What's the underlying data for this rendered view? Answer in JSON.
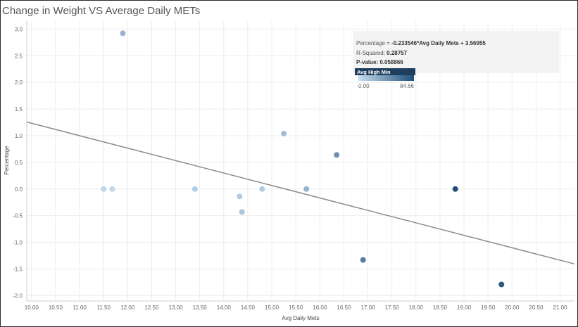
{
  "chart_data": {
    "type": "scatter",
    "title": "Change in Weight VS Average Daily METs",
    "xlabel": "Avg Daily Mets",
    "ylabel": "Percentage",
    "xlim": [
      9.9,
      21.3
    ],
    "ylim": [
      -2.1,
      3.15
    ],
    "x_ticks": [
      "10.00",
      "10.50",
      "11.00",
      "11.50",
      "12.00",
      "12.50",
      "13.00",
      "13.50",
      "14.00",
      "14.50",
      "15.00",
      "15.50",
      "16.00",
      "16.50",
      "17.00",
      "17.50",
      "18.00",
      "18.50",
      "19.00",
      "19.50",
      "20.00",
      "20.50",
      "21.00"
    ],
    "y_ticks": [
      "3.0",
      "2.5",
      "2.0",
      "1.5",
      "1.0",
      "0.5",
      "0.0",
      "-0.5",
      "-1.0",
      "-1.5",
      "-2.0"
    ],
    "grid": true,
    "points": [
      {
        "x": 11.5,
        "y": 0.0,
        "avg_high_min": 5
      },
      {
        "x": 11.68,
        "y": 0.0,
        "avg_high_min": 4
      },
      {
        "x": 11.9,
        "y": 2.92,
        "avg_high_min": 25
      },
      {
        "x": 13.4,
        "y": 0.0,
        "avg_high_min": 10
      },
      {
        "x": 14.33,
        "y": -0.14,
        "avg_high_min": 12
      },
      {
        "x": 14.38,
        "y": -0.43,
        "avg_high_min": 14
      },
      {
        "x": 14.8,
        "y": 0.0,
        "avg_high_min": 10
      },
      {
        "x": 15.25,
        "y": 1.04,
        "avg_high_min": 20
      },
      {
        "x": 15.72,
        "y": 0.0,
        "avg_high_min": 25
      },
      {
        "x": 16.35,
        "y": 0.64,
        "avg_high_min": 45
      },
      {
        "x": 16.9,
        "y": -1.33,
        "avg_high_min": 58
      },
      {
        "x": 18.82,
        "y": 0.0,
        "avg_high_min": 84.66
      },
      {
        "x": 19.78,
        "y": -1.79,
        "avg_high_min": 78
      }
    ],
    "trend_line": {
      "slope": -0.233546,
      "intercept": 3.56955,
      "x_range": [
        9.9,
        21.3
      ],
      "color": "#8c8c8c"
    },
    "color_legend": {
      "title": "Avg High Min",
      "min": "0.00",
      "max": "84.66",
      "min_color": "#c9def0",
      "max_color": "#1f4e79"
    },
    "annotation": {
      "equation_prefix": "Percentage = ",
      "equation_value": "-0.233546*Avg Daily Mets + 3.56955",
      "r_squared_label": "R-Squared: ",
      "r_squared_value": "0.28757",
      "p_value_label": "P-value: 0.058866"
    }
  }
}
